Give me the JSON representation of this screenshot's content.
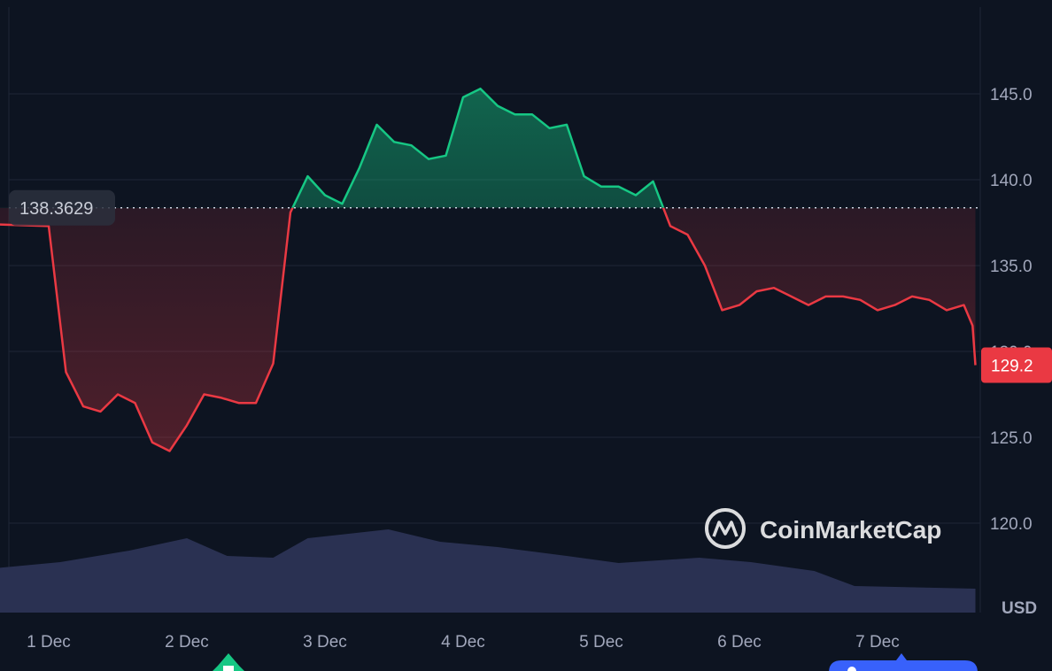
{
  "chart_data": {
    "type": "line",
    "currency_label": "USD",
    "watermark": "CoinMarketCap",
    "baseline_value": "138.3629",
    "last_price_label": "129.2",
    "ylim": [
      117,
      149
    ],
    "y_ticks": [
      "120.0",
      "125.0",
      "130.0",
      "135.0",
      "140.0",
      "145.0"
    ],
    "x_ticks": [
      "1 Dec",
      "2 Dec",
      "3 Dec",
      "4 Dec",
      "5 Dec",
      "6 Dec",
      "7 Dec"
    ],
    "grid": true,
    "colors": {
      "background": "#0d1421",
      "up": "#16c784",
      "down": "#ea3943",
      "volume": "#2a3152",
      "grid": "#1f2636",
      "marker_blue": "#3861fb"
    },
    "series": [
      {
        "x": [
          "Nov 30 17:00",
          "Nov 30 18:00",
          "Nov 30 21:00",
          "Dec 1 00:00",
          "Dec 1 03:00",
          "Dec 1 06:00",
          "Dec 1 09:00",
          "Dec 1 12:00",
          "Dec 1 15:00",
          "Dec 1 18:00",
          "Dec 1 21:00",
          "Dec 2 00:00",
          "Dec 2 03:00",
          "Dec 2 06:00",
          "Dec 2 09:00",
          "Dec 2 12:00",
          "Dec 2 15:00",
          "Dec 2 18:00",
          "Dec 2 21:00",
          "Dec 3 00:00",
          "Dec 3 03:00",
          "Dec 3 06:00",
          "Dec 3 09:00",
          "Dec 3 12:00",
          "Dec 3 15:00",
          "Dec 3 18:00",
          "Dec 3 21:00",
          "Dec 4 00:00",
          "Dec 4 03:00",
          "Dec 4 06:00",
          "Dec 4 09:00",
          "Dec 4 12:00",
          "Dec 4 15:00",
          "Dec 4 18:00",
          "Dec 4 21:00",
          "Dec 5 00:00",
          "Dec 5 03:00",
          "Dec 5 06:00",
          "Dec 5 09:00",
          "Dec 5 12:00",
          "Dec 5 15:00",
          "Dec 5 18:00",
          "Dec 5 21:00",
          "Dec 6 00:00",
          "Dec 6 03:00",
          "Dec 6 06:00",
          "Dec 6 09:00",
          "Dec 6 12:00",
          "Dec 6 15:00",
          "Dec 6 18:00",
          "Dec 6 21:00",
          "Dec 7 00:00",
          "Dec 7 03:00",
          "Dec 7 06:00",
          "Dec 7 09:00",
          "Dec 7 12:00",
          "Dec 7 15:00",
          "Dec 7 16:30",
          "Dec 7 17:00"
        ],
        "values": [
          138.4,
          139.6,
          137.6,
          137.3,
          128.8,
          126.8,
          126.5,
          127.5,
          127.0,
          124.7,
          124.2,
          125.7,
          127.5,
          127.3,
          127.0,
          127.0,
          129.3,
          138.1,
          140.2,
          139.1,
          138.6,
          140.7,
          143.2,
          142.2,
          142.0,
          141.2,
          141.4,
          144.8,
          145.3,
          144.3,
          143.8,
          143.8,
          143.0,
          143.2,
          140.2,
          139.6,
          139.6,
          139.1,
          139.9,
          137.3,
          136.8,
          135.0,
          132.4,
          132.7,
          133.5,
          133.7,
          133.2,
          132.7,
          133.2,
          133.2,
          133.0,
          132.4,
          132.7,
          133.2,
          133.0,
          132.4,
          132.7,
          131.5,
          129.2
        ]
      }
    ],
    "volume": {
      "x": [
        "Nov 30 17:00",
        "Dec 1 02:00",
        "Dec 1 14:00",
        "Dec 2 00:00",
        "Dec 2 07:00",
        "Dec 2 15:00",
        "Dec 2 21:00",
        "Dec 3 11:00",
        "Dec 3 20:00",
        "Dec 4 06:00",
        "Dec 4 18:00",
        "Dec 5 03:00",
        "Dec 5 17:00",
        "Dec 6 02:00",
        "Dec 6 13:00",
        "Dec 6 20:00",
        "Dec 7 17:00"
      ],
      "values": [
        37,
        57,
        70,
        84,
        64,
        62,
        84,
        94,
        80,
        74,
        64,
        56,
        62,
        57,
        47,
        30,
        27
      ]
    }
  }
}
